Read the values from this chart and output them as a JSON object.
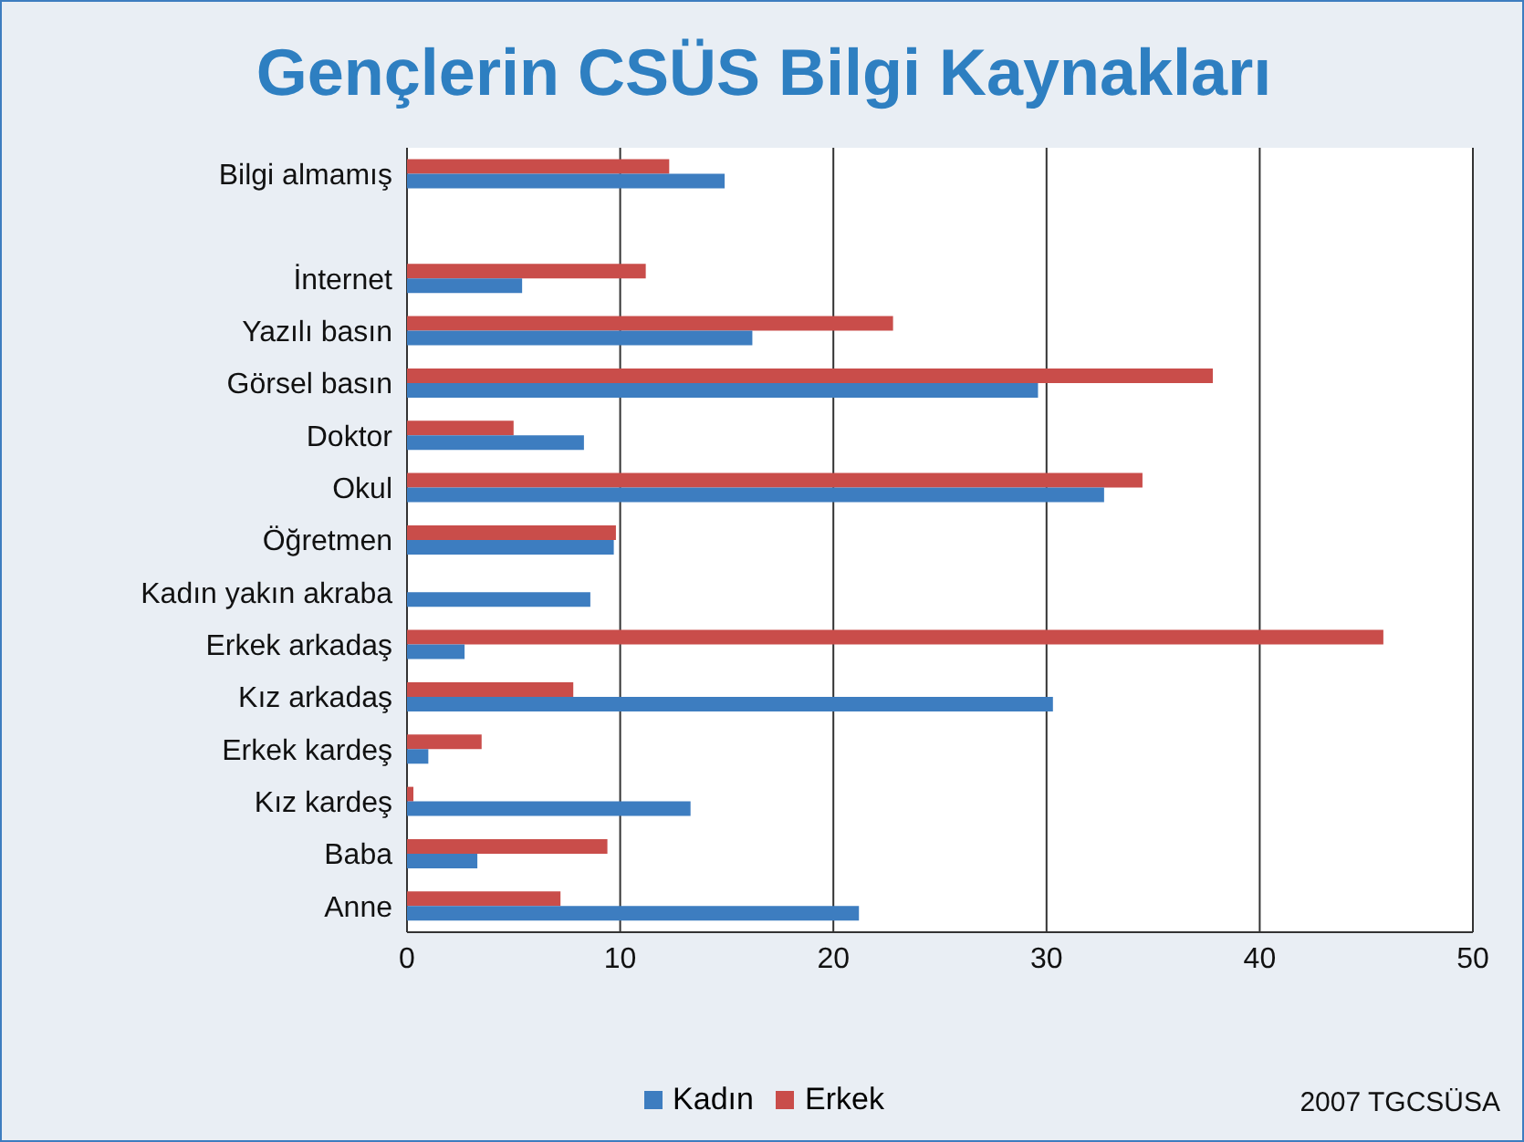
{
  "chart_data": {
    "type": "bar",
    "orientation": "horizontal",
    "title": "Gençlerin CSÜS Bilgi Kaynakları",
    "categories": [
      "Bilgi almamış",
      null,
      "İnternet",
      "Yazılı basın",
      "Görsel basın",
      "Doktor",
      "Okul",
      "Öğretmen",
      "Kadın yakın akraba",
      "Erkek arkadaş",
      "Kız arkadaş",
      "Erkek kardeş",
      "Kız kardeş",
      "Baba",
      "Anne"
    ],
    "series": [
      {
        "name": "Kadın",
        "color": "#3d7dc0",
        "values": [
          14.9,
          null,
          5.4,
          16.2,
          29.6,
          8.3,
          32.7,
          9.7,
          8.6,
          2.7,
          30.3,
          1.0,
          13.3,
          3.3,
          21.2
        ]
      },
      {
        "name": "Erkek",
        "color": "#c94d4a",
        "values": [
          12.3,
          null,
          11.2,
          22.8,
          37.8,
          5.0,
          34.5,
          9.8,
          0,
          45.8,
          7.8,
          3.5,
          0.3,
          9.4,
          7.2
        ]
      }
    ],
    "xlim": [
      0,
      50
    ],
    "xticks": [
      0,
      10,
      20,
      30,
      40,
      50
    ],
    "grid": "x",
    "legend": "bottom",
    "annotations": [
      "2007 TGCSÜSA"
    ]
  }
}
